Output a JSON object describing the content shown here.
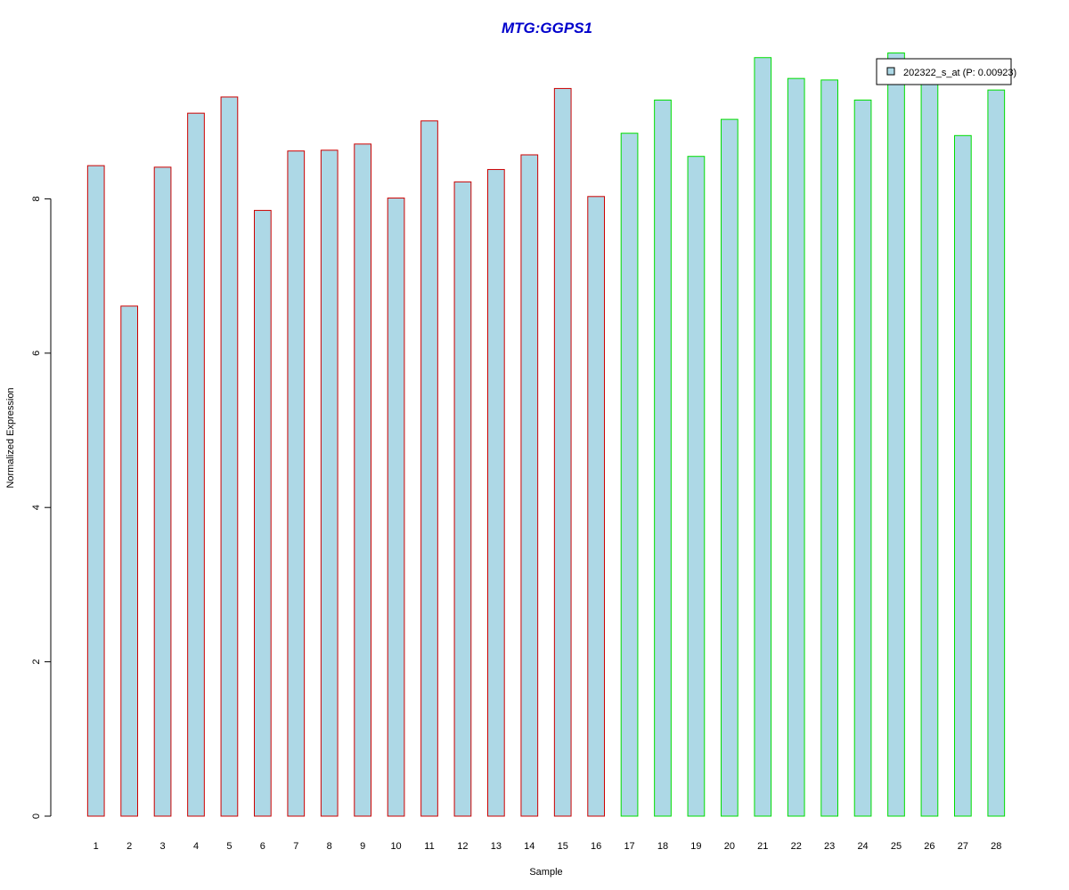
{
  "chart_data": {
    "type": "bar",
    "title": "MTG:GGPS1",
    "title_color": "#0000cc",
    "xlabel": "Sample",
    "ylabel": "Normalized Expression",
    "ylim": [
      0,
      9.9
    ],
    "yticks": [
      0,
      2,
      4,
      6,
      8
    ],
    "grid": false,
    "legend_position": "top-right",
    "fill_color": "#add8e6",
    "categories": [
      "1",
      "2",
      "3",
      "4",
      "5",
      "6",
      "7",
      "8",
      "9",
      "10",
      "11",
      "12",
      "13",
      "14",
      "15",
      "16",
      "17",
      "18",
      "19",
      "20",
      "21",
      "22",
      "23",
      "24",
      "25",
      "26",
      "27",
      "28"
    ],
    "series": [
      {
        "name": "202322_s_at (P: 0.00923)",
        "values": [
          8.43,
          6.61,
          8.41,
          9.11,
          9.32,
          7.85,
          8.62,
          8.63,
          8.71,
          8.01,
          9.01,
          8.22,
          8.38,
          8.57,
          9.43,
          8.03,
          8.85,
          9.28,
          8.55,
          9.03,
          9.83,
          9.56,
          9.54,
          9.28,
          9.89,
          9.59,
          8.82,
          9.41
        ]
      }
    ],
    "groups": [
      {
        "from": 1,
        "to": 16,
        "border_color": "#cc0000"
      },
      {
        "from": 17,
        "to": 28,
        "border_color": "#00dd00"
      }
    ]
  }
}
